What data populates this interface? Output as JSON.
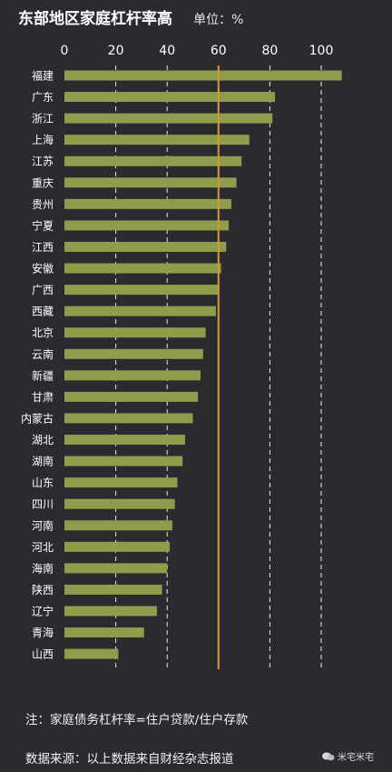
{
  "header": {
    "title": "东部地区家庭杠杆率高",
    "unit": "单位：%"
  },
  "chart_data": {
    "type": "bar",
    "orientation": "horizontal",
    "title": "东部地区家庭杠杆率高",
    "xlim": [
      0,
      105
    ],
    "xticks": [
      "0",
      "20",
      "40",
      "60",
      "80",
      "100"
    ],
    "tick_values": [
      0,
      20,
      40,
      60,
      80,
      100
    ],
    "grid": "vertical-dashed",
    "reference_line": 60,
    "categories": [
      "福建",
      "广东",
      "浙江",
      "上海",
      "江苏",
      "重庆",
      "贵州",
      "宁夏",
      "江西",
      "安徽",
      "广西",
      "西藏",
      "北京",
      "云南",
      "新疆",
      "甘肃",
      "内蒙古",
      "湖北",
      "湖南",
      "山东",
      "四川",
      "河南",
      "河北",
      "海南",
      "陕西",
      "辽宁",
      "青海",
      "山西"
    ],
    "values": [
      108,
      82,
      81,
      72,
      69,
      67,
      65,
      64,
      63,
      61,
      60,
      59,
      55,
      54,
      53,
      52,
      50,
      47,
      46,
      44,
      43,
      42,
      41,
      40,
      38,
      36,
      31,
      21
    ]
  },
  "colors": {
    "bar": "#8f9c4c",
    "reference": "#e0952e",
    "grid": "#ececec",
    "background": "#2b2a2f"
  },
  "footer": {
    "note": "注：家庭债务杠杆率=住户贷款/住户存款",
    "source": "数据来源：以上数据来自财经杂志报道",
    "watermark": "米宅米宅"
  }
}
